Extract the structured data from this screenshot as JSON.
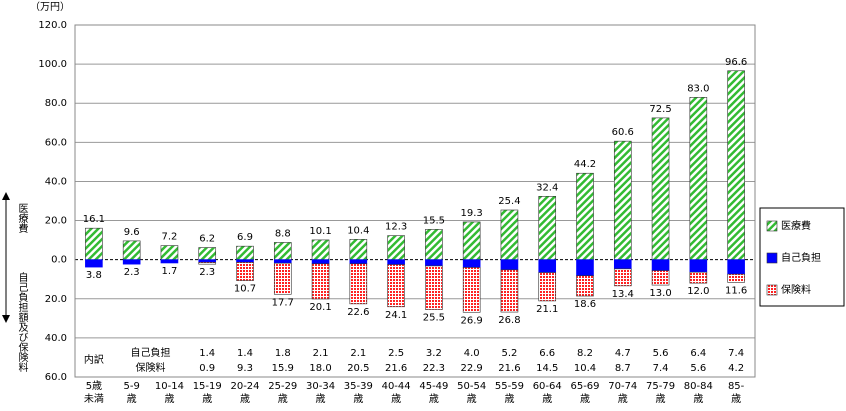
{
  "chart_data": {
    "type": "bar",
    "y_unit": "（万円）",
    "upper_label": "医療費",
    "lower_label": "自己負担額及び保険料",
    "breakdown_title": "内訳",
    "categories": [
      "5歳\n未満",
      "5-9\n歳",
      "10-14\n歳",
      "15-19\n歳",
      "20-24\n歳",
      "25-29\n歳",
      "30-34\n歳",
      "35-39\n歳",
      "40-44\n歳",
      "45-49\n歳",
      "50-54\n歳",
      "55-59\n歳",
      "60-64\n歳",
      "65-69\n歳",
      "70-74\n歳",
      "75-79\n歳",
      "80-84\n歳",
      "85-\n歳"
    ],
    "ylim": [
      -60,
      120
    ],
    "yticks": [
      {
        "value": 120,
        "label": "120.0"
      },
      {
        "value": 100,
        "label": "100.0"
      },
      {
        "value": 80,
        "label": "80.0"
      },
      {
        "value": 60,
        "label": "60.0"
      },
      {
        "value": 40,
        "label": "40.0"
      },
      {
        "value": 20,
        "label": "20.0"
      },
      {
        "value": 0,
        "label": "0.0"
      },
      {
        "value": -20,
        "label": "20.0"
      },
      {
        "value": -40,
        "label": "40.0"
      },
      {
        "value": -60,
        "label": "60.0"
      }
    ],
    "grid": true,
    "series": [
      {
        "name": "医療費",
        "color": "#33bb33",
        "pattern": "hatch",
        "values": [
          16.1,
          9.6,
          7.2,
          6.2,
          6.9,
          8.8,
          10.1,
          10.4,
          12.3,
          15.5,
          19.3,
          25.4,
          32.4,
          44.2,
          60.6,
          72.5,
          83.0,
          96.6
        ],
        "value_labels": [
          "16.1",
          "9.6",
          "7.2",
          "6.2",
          "6.9",
          "8.8",
          "10.1",
          "10.4",
          "12.3",
          "15.5",
          "19.3",
          "25.4",
          "32.4",
          "44.2",
          "60.6",
          "72.5",
          "83.0",
          "96.6"
        ]
      },
      {
        "name": "自己負担",
        "color": "#0000ff",
        "pattern": "solid",
        "values": [
          -3.8,
          -2.3,
          -1.7,
          -1.4,
          -1.4,
          -1.8,
          -2.1,
          -2.1,
          -2.5,
          -3.2,
          -4.0,
          -5.2,
          -6.6,
          -8.2,
          -4.7,
          -5.6,
          -6.4,
          -7.4
        ],
        "value_labels": [
          null,
          null,
          null,
          "1.4",
          "1.4",
          "1.8",
          "2.1",
          "2.1",
          "2.5",
          "3.2",
          "4.0",
          "5.2",
          "6.6",
          "8.2",
          "4.7",
          "5.6",
          "6.4",
          "7.4"
        ]
      },
      {
        "name": "保険料",
        "color": "#ff2222",
        "pattern": "dots",
        "values": [
          null,
          null,
          null,
          -0.9,
          -9.3,
          -15.9,
          -18.0,
          -20.5,
          -21.6,
          -22.3,
          -22.9,
          -21.6,
          -14.5,
          -10.4,
          -8.7,
          -7.4,
          -5.6,
          -4.2
        ],
        "value_labels": [
          null,
          null,
          null,
          "0.9",
          "9.3",
          "15.9",
          "18.0",
          "20.5",
          "21.6",
          "22.3",
          "22.9",
          "21.6",
          "14.5",
          "10.4",
          "8.7",
          "7.4",
          "5.6",
          "4.2"
        ]
      }
    ],
    "totals": {
      "values": [
        -3.8,
        -2.3,
        -1.7,
        -2.3,
        -10.7,
        -17.7,
        -20.1,
        -22.6,
        -24.1,
        -25.5,
        -26.9,
        -26.8,
        -21.1,
        -18.6,
        -13.4,
        -13.0,
        -12.0,
        -11.6
      ],
      "value_labels": [
        "3.8",
        "2.3",
        "1.7",
        "2.3",
        "10.7",
        "17.7",
        "20.1",
        "22.6",
        "24.1",
        "25.5",
        "26.9",
        "26.8",
        "21.1",
        "18.6",
        "13.4",
        "13.0",
        "12.0",
        "11.6"
      ]
    }
  }
}
